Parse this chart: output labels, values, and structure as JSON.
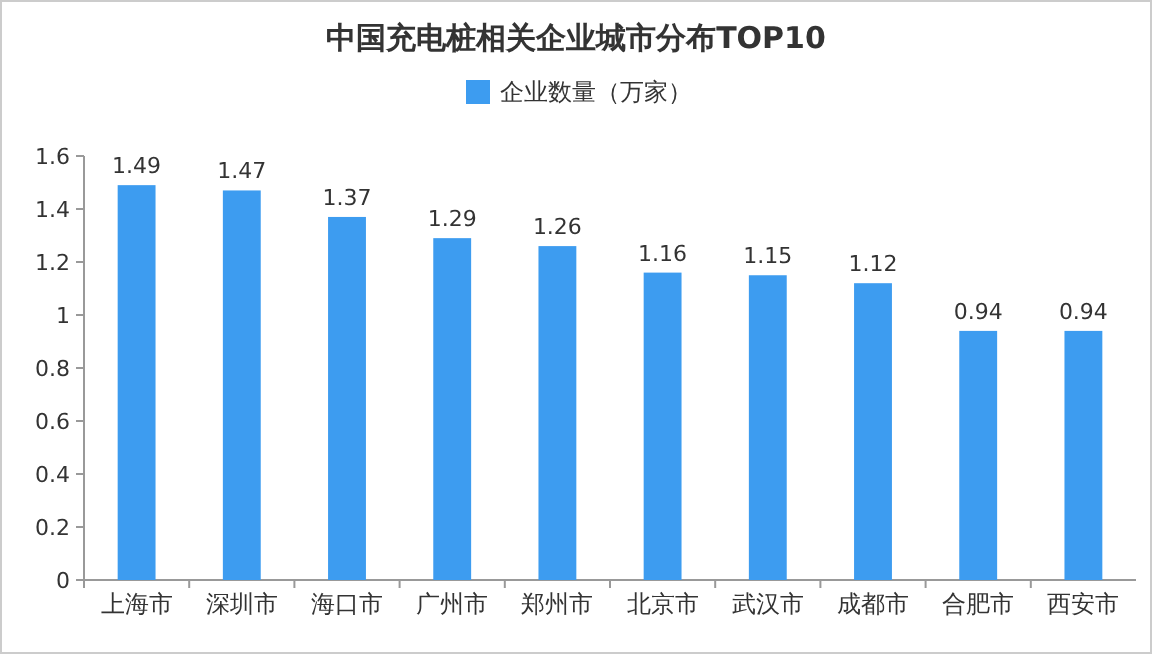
{
  "chart_data": {
    "type": "bar",
    "title": "中国充电桩相关企业城市分布TOP10",
    "categories": [
      "上海市",
      "深圳市",
      "海口市",
      "广州市",
      "郑州市",
      "北京市",
      "武汉市",
      "成都市",
      "合肥市",
      "西安市"
    ],
    "series": [
      {
        "name": "企业数量（万家）",
        "color": "#3d9cf0",
        "values": [
          1.49,
          1.47,
          1.37,
          1.29,
          1.26,
          1.16,
          1.15,
          1.12,
          0.94,
          0.94
        ]
      }
    ],
    "ylim": [
      0,
      1.6
    ],
    "yticks": [
      0,
      0.2,
      0.4,
      0.6,
      0.8,
      1,
      1.2,
      1.4,
      1.6
    ],
    "data_labels": true,
    "legend": "top"
  }
}
